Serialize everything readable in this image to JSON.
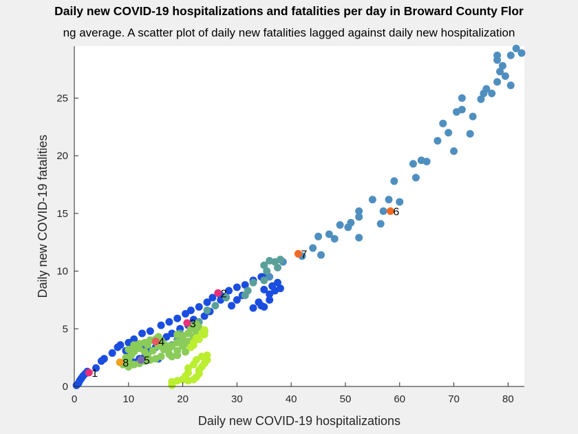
{
  "chart_data": {
    "type": "scatter",
    "title": "Daily new COVID-19 hospitalizations and fatalities per day in Broward County Flor",
    "subtitle": "ng average. A scatter plot of daily new fatalities lagged against daily new hospitalization",
    "xlabel": "Daily new COVID-19 hospitalizations",
    "ylabel": "Daily new COVID-19 fatalities",
    "xlim": [
      0,
      83
    ],
    "ylim": [
      0,
      29.5
    ],
    "xticks": [
      "0",
      "10",
      "20",
      "30",
      "40",
      "50",
      "60",
      "70",
      "80"
    ],
    "yticks": [
      "0",
      "5",
      "10",
      "15",
      "20",
      "25"
    ],
    "grid": false,
    "series": [
      {
        "color": "#1a4de0",
        "points": [
          [
            0.4,
            0.1
          ],
          [
            0.8,
            0.3
          ],
          [
            1.0,
            0.5
          ],
          [
            1.3,
            0.7
          ],
          [
            1.6,
            0.9
          ],
          [
            2.0,
            1.1
          ],
          [
            2.4,
            1.3
          ],
          [
            4,
            1.6
          ],
          [
            5,
            2.2
          ],
          [
            5.5,
            2.4
          ],
          [
            7,
            2.9
          ],
          [
            8,
            3.4
          ],
          [
            8.5,
            3.6
          ],
          [
            10,
            3.8
          ],
          [
            9.5,
            3.1
          ],
          [
            11,
            4.1
          ],
          [
            12.5,
            4.6
          ],
          [
            14,
            4.8
          ],
          [
            16,
            5.3
          ],
          [
            17.5,
            5.6
          ],
          [
            19,
            5.9
          ],
          [
            20.5,
            6.3
          ],
          [
            21.5,
            6.6
          ],
          [
            23,
            6.9
          ],
          [
            24.5,
            7.3
          ],
          [
            25.5,
            7.7
          ],
          [
            27,
            7.9
          ],
          [
            28.5,
            8.3
          ],
          [
            30,
            8.6
          ],
          [
            31.5,
            8.8
          ],
          [
            33,
            9.2
          ],
          [
            34.5,
            9.5
          ],
          [
            35.5,
            9.7
          ],
          [
            34,
            7.3
          ],
          [
            33,
            6.8
          ],
          [
            34.5,
            7.0
          ],
          [
            36,
            8.0
          ],
          [
            37,
            8.3
          ],
          [
            38,
            8.5
          ],
          [
            36.5,
            8.7
          ],
          [
            35,
            8.4
          ],
          [
            37.5,
            9.0
          ],
          [
            36,
            7.5
          ],
          [
            35,
            6.9
          ],
          [
            30,
            7.5
          ],
          [
            29,
            7.0
          ],
          [
            31,
            7.9
          ],
          [
            27,
            7.5
          ],
          [
            25,
            6.5
          ],
          [
            24,
            6.1
          ],
          [
            22,
            5.8
          ],
          [
            21,
            5.3
          ],
          [
            19.5,
            5.0
          ],
          [
            18,
            4.6
          ],
          [
            17,
            4.3
          ],
          [
            16,
            3.9
          ],
          [
            15,
            3.4
          ],
          [
            14,
            3.1
          ],
          [
            13,
            2.6
          ],
          [
            15.5,
            2.4
          ],
          [
            12,
            2.4
          ],
          [
            11,
            2.1
          ],
          [
            10,
            2.3
          ],
          [
            9,
            2.0
          ],
          [
            13,
            3.5
          ],
          [
            14,
            4.0
          ]
        ]
      },
      {
        "color": "#4f8fbf",
        "points": [
          [
            36,
            9.5
          ],
          [
            38.5,
            10.8
          ],
          [
            42,
            11.3
          ],
          [
            44,
            12.0
          ],
          [
            45.5,
            11.4
          ],
          [
            45,
            13.0
          ],
          [
            47,
            13.2
          ],
          [
            48,
            12.8
          ],
          [
            49,
            14.0
          ],
          [
            50.5,
            13.8
          ],
          [
            51,
            14.2
          ],
          [
            52.5,
            12.9
          ],
          [
            52.5,
            14.7
          ],
          [
            52.5,
            15.2
          ],
          [
            55,
            16.2
          ],
          [
            56.5,
            14.1
          ],
          [
            57,
            15.2
          ],
          [
            58,
            16.2
          ],
          [
            59,
            17.8
          ],
          [
            60,
            16.0
          ],
          [
            62.5,
            19.3
          ],
          [
            63,
            18.1
          ],
          [
            64,
            19.6
          ],
          [
            65,
            19.5
          ],
          [
            67,
            21.3
          ],
          [
            68,
            22.8
          ],
          [
            69,
            22.0
          ],
          [
            70,
            20.4
          ],
          [
            70.5,
            23.8
          ],
          [
            71.5,
            24.0
          ],
          [
            71.5,
            25.0
          ],
          [
            73,
            21.9
          ],
          [
            73.5,
            23.4
          ],
          [
            75,
            24.9
          ],
          [
            75.5,
            25.4
          ],
          [
            76,
            25.8
          ],
          [
            77,
            25.4
          ],
          [
            78,
            26.4
          ],
          [
            78.5,
            27.3
          ],
          [
            79,
            27.8
          ],
          [
            79.5,
            26.9
          ],
          [
            80.5,
            26.1
          ],
          [
            80.5,
            28.7
          ],
          [
            81.5,
            29.3
          ],
          [
            82.5,
            28.9
          ],
          [
            78,
            28.3
          ],
          [
            78,
            28.7
          ]
        ]
      },
      {
        "color": "#5aa09a",
        "points": [
          [
            35,
            10.5
          ],
          [
            36,
            10.9
          ],
          [
            37,
            10.8
          ],
          [
            38,
            11.0
          ],
          [
            37.5,
            10.3
          ],
          [
            35.5,
            10.0
          ],
          [
            35,
            9.2
          ],
          [
            33,
            9.0
          ],
          [
            32,
            8.3
          ],
          [
            31.5,
            7.9
          ],
          [
            28,
            7.7
          ],
          [
            26,
            7.0
          ],
          [
            24.5,
            6.6
          ],
          [
            23,
            5.6
          ],
          [
            21.5,
            5.3
          ],
          [
            19.5,
            4.6
          ],
          [
            24,
            4.8
          ],
          [
            23,
            4.3
          ],
          [
            19,
            4.1
          ],
          [
            18,
            3.6
          ]
        ]
      },
      {
        "color": "#8acb5a",
        "points": [
          [
            9,
            1.9
          ],
          [
            9.5,
            2.1
          ],
          [
            10,
            2.3
          ],
          [
            10.5,
            2.7
          ],
          [
            11,
            3.0
          ],
          [
            11.5,
            3.4
          ],
          [
            12,
            3.7
          ],
          [
            13,
            3.8
          ],
          [
            13.5,
            3.6
          ],
          [
            14,
            4.0
          ],
          [
            15,
            4.1
          ],
          [
            15.5,
            4.3
          ],
          [
            16,
            4.0
          ],
          [
            16.5,
            3.7
          ],
          [
            17,
            3.5
          ],
          [
            17.5,
            3.3
          ],
          [
            18,
            3.5
          ],
          [
            19,
            3.8
          ],
          [
            20,
            4.1
          ],
          [
            21,
            4.6
          ],
          [
            21.5,
            5.0
          ],
          [
            22,
            5.2
          ],
          [
            22.5,
            5.4
          ],
          [
            23,
            5.1
          ],
          [
            22.5,
            4.7
          ],
          [
            22,
            4.3
          ],
          [
            21,
            3.9
          ],
          [
            20,
            3.5
          ],
          [
            19,
            3.1
          ],
          [
            17.5,
            2.8
          ],
          [
            16,
            2.6
          ],
          [
            15,
            2.4
          ],
          [
            14,
            2.3
          ],
          [
            13,
            2.2
          ],
          [
            12,
            2.0
          ],
          [
            11,
            1.9
          ],
          [
            10,
            1.7
          ],
          [
            9.5,
            2.5
          ],
          [
            10,
            3.2
          ],
          [
            11,
            3.6
          ],
          [
            12,
            3.3
          ],
          [
            13,
            3.0
          ],
          [
            13.5,
            2.7
          ],
          [
            14.5,
            3.1
          ],
          [
            15.5,
            3.5
          ],
          [
            16.5,
            3.2
          ],
          [
            18,
            2.6
          ],
          [
            19,
            2.7
          ],
          [
            20.5,
            3.0
          ],
          [
            21,
            3.7
          ],
          [
            20,
            4.4
          ],
          [
            19,
            4.5
          ]
        ]
      },
      {
        "color": "#bbee30",
        "points": [
          [
            18,
            0.1
          ],
          [
            18,
            0.4
          ],
          [
            19,
            0.5
          ],
          [
            20,
            0.6
          ],
          [
            21,
            0.5
          ],
          [
            22,
            0.6
          ],
          [
            22.5,
            0.8
          ],
          [
            23,
            1.1
          ],
          [
            23,
            1.4
          ],
          [
            23.5,
            1.7
          ],
          [
            24,
            2.0
          ],
          [
            24.5,
            2.3
          ],
          [
            24.5,
            2.7
          ],
          [
            23.5,
            2.6
          ],
          [
            22.5,
            2.3
          ],
          [
            22,
            1.9
          ],
          [
            21,
            1.6
          ],
          [
            21,
            1.2
          ],
          [
            20.5,
            0.9
          ],
          [
            21.5,
            3.4
          ],
          [
            22,
            3.8
          ],
          [
            23,
            4.1
          ],
          [
            24,
            4.5
          ],
          [
            24,
            4.9
          ],
          [
            23.5,
            4.6
          ],
          [
            22.5,
            4.2
          ],
          [
            22,
            3.6
          ]
        ]
      }
    ],
    "labeled_points": [
      {
        "label": "1",
        "x": 2.7,
        "y": 1.2,
        "color": "#e8307a"
      },
      {
        "label": "2",
        "x": 26.5,
        "y": 8.1,
        "color": "#e8307a"
      },
      {
        "label": "3",
        "x": 20.8,
        "y": 5.5,
        "color": "#e8307a"
      },
      {
        "label": "4",
        "x": 15,
        "y": 3.9,
        "color": "#e55a5a"
      },
      {
        "label": "5",
        "x": 12.3,
        "y": 2.3,
        "color": "#7a6ab0"
      },
      {
        "label": "6",
        "x": 58.3,
        "y": 15.2,
        "color": "#f26a21"
      },
      {
        "label": "7",
        "x": 41.3,
        "y": 11.5,
        "color": "#f26a21"
      },
      {
        "label": "8",
        "x": 8.4,
        "y": 2.1,
        "color": "#f0a020"
      }
    ]
  }
}
